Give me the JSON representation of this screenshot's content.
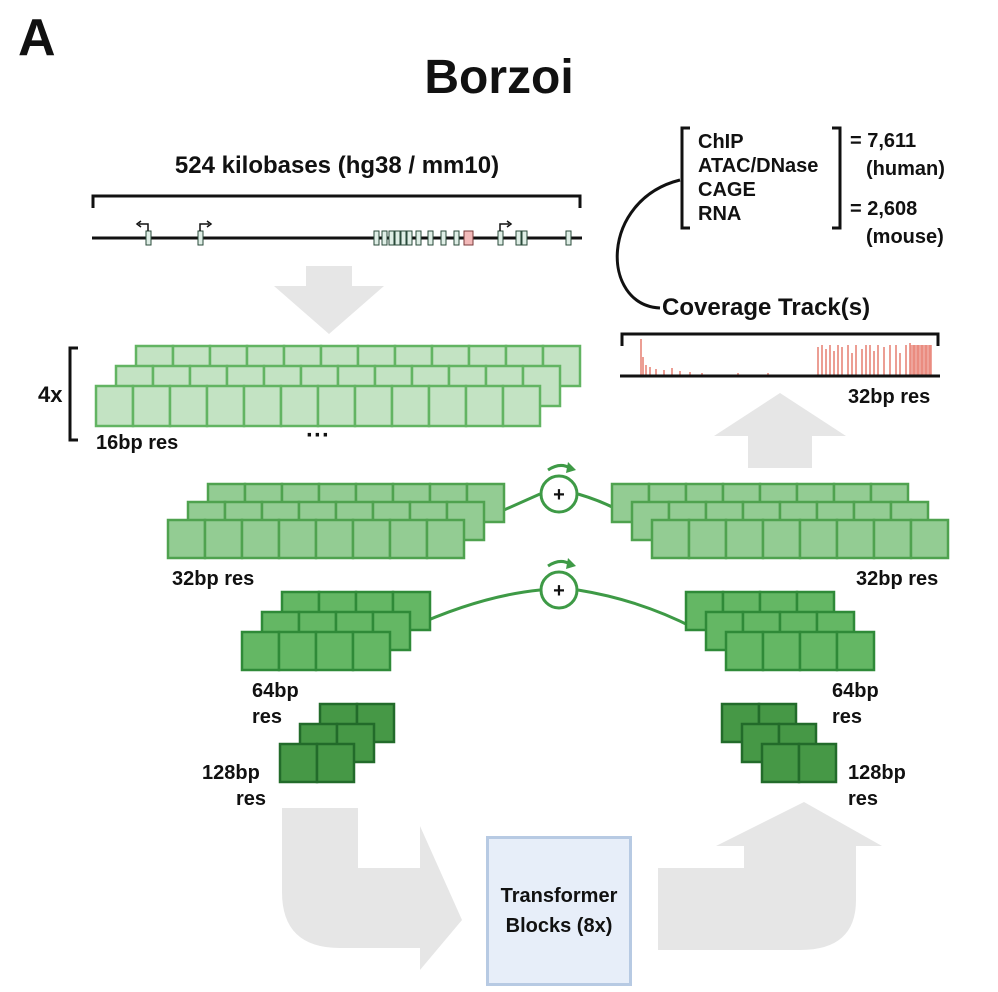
{
  "panel_label": "A",
  "title": "Borzoi",
  "input": {
    "length_label": "524 kilobases (hg38 / mm10)"
  },
  "encoder": {
    "repeat_label": "4x",
    "res_16": "16bp res",
    "ellipsis": "···",
    "res_32": "32bp res",
    "res_64_line1": "64bp",
    "res_64_line2": "res",
    "res_128_line1": "128bp",
    "res_128_line2": "res"
  },
  "decoder": {
    "res_32": "32bp res",
    "res_64_line1": "64bp",
    "res_64_line2": "res",
    "res_128_line1": "128bp",
    "res_128_line2": "res"
  },
  "skip_connection_symbol": "+",
  "transformer": {
    "line1": "Transformer",
    "line2": "Blocks (8x)"
  },
  "output": {
    "coverage_label": "Coverage Track(s)",
    "res_label": "32bp res",
    "assays": [
      "ChIP",
      "ATAC/DNase",
      "CAGE",
      "RNA"
    ],
    "human_count": "= 7,611",
    "human_label": "(human)",
    "mouse_count": "= 2,608",
    "mouse_label": "(mouse)"
  },
  "colors": {
    "green_light": "#c3e3c3",
    "green_light_border": "#62b462",
    "green_mid": "#93cc93",
    "green_mid_border": "#4fa24f",
    "green_dark": "#64b764",
    "green_dark_border": "#2f8a38",
    "green_darker": "#469846",
    "green_darker_border": "#226b2a",
    "arrow_gray": "#e6e6e6",
    "coverage_red": "#e8857a"
  }
}
